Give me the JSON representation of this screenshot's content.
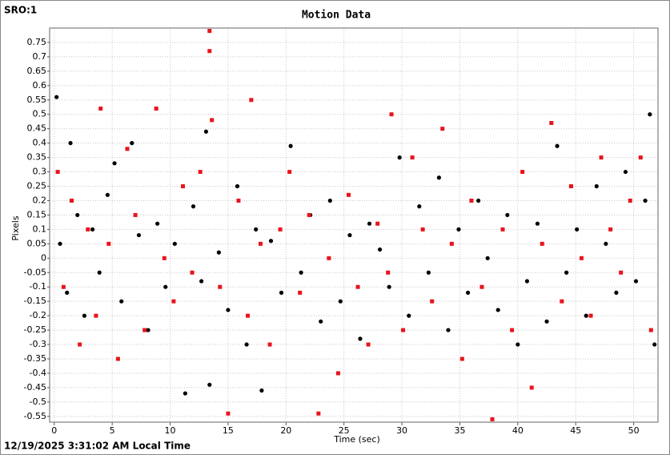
{
  "chart_data": {
    "type": "scatter",
    "title": "Motion Data",
    "annotations": [
      "SRO:1",
      "12/19/2025 3:31:02 AM Local Time"
    ],
    "x_label": "Time (sec)",
    "y_label": "Pixels",
    "xlim": [
      -0.4,
      52.1
    ],
    "ylim": [
      -0.57,
      0.8
    ],
    "xticks": [
      0,
      5,
      10,
      15,
      20,
      25,
      30,
      35,
      40,
      45,
      50
    ],
    "yticks": [
      -0.55,
      -0.5,
      -0.45,
      -0.4,
      -0.35,
      -0.3,
      -0.25,
      -0.2,
      -0.15,
      -0.1,
      -0.05,
      0,
      0.05,
      0.1,
      0.15,
      0.2,
      0.25,
      0.3,
      0.35,
      0.4,
      0.45,
      0.5,
      0.55,
      0.6,
      0.65,
      0.7,
      0.75
    ],
    "grid": true,
    "series": [
      {
        "color": "#000000",
        "marker": "circle",
        "x": [
          0.2,
          0.5,
          1.1,
          1.4,
          2.0,
          2.6,
          3.3,
          3.9,
          4.6,
          5.2,
          5.8,
          6.7,
          7.3,
          8.1,
          8.9,
          9.6,
          10.4,
          11.3,
          12.0,
          12.7,
          13.1,
          13.4,
          14.2,
          15.0,
          15.8,
          16.6,
          17.4,
          17.9,
          18.7,
          19.6,
          20.4,
          21.3,
          22.1,
          23.0,
          23.8,
          24.7,
          25.5,
          26.4,
          27.2,
          28.1,
          28.9,
          29.8,
          30.6,
          31.5,
          32.3,
          33.2,
          34.0,
          34.9,
          35.7,
          36.6,
          37.4,
          38.3,
          39.1,
          40.0,
          40.8,
          41.7,
          42.5,
          43.4,
          44.2,
          45.1,
          45.9,
          46.8,
          47.6,
          48.5,
          49.3,
          50.2,
          51.0,
          51.4,
          51.8
        ],
        "values": [
          0.56,
          0.05,
          -0.12,
          0.4,
          0.15,
          -0.2,
          0.1,
          -0.05,
          0.22,
          0.33,
          -0.15,
          0.4,
          0.08,
          -0.25,
          0.12,
          -0.1,
          0.05,
          -0.47,
          0.18,
          -0.08,
          0.44,
          -0.44,
          0.02,
          -0.18,
          0.25,
          -0.3,
          0.1,
          -0.46,
          0.06,
          -0.12,
          0.39,
          -0.05,
          0.15,
          -0.22,
          0.2,
          -0.15,
          0.08,
          -0.28,
          0.12,
          0.03,
          -0.1,
          0.35,
          -0.2,
          0.18,
          -0.05,
          0.28,
          -0.25,
          0.1,
          -0.12,
          0.2,
          0.0,
          -0.18,
          0.15,
          -0.3,
          -0.08,
          0.12,
          -0.22,
          0.39,
          -0.05,
          0.1,
          -0.2,
          0.25,
          0.05,
          -0.12,
          0.3,
          -0.08,
          0.2,
          0.5,
          -0.3
        ]
      },
      {
        "color": "#e8141c",
        "marker": "square",
        "x": [
          0.3,
          0.8,
          1.5,
          2.2,
          2.9,
          3.6,
          4.0,
          4.7,
          5.5,
          6.3,
          7.0,
          7.8,
          8.8,
          9.5,
          10.3,
          11.1,
          11.9,
          12.6,
          13.4,
          13.4,
          13.6,
          14.3,
          15.0,
          15.9,
          16.7,
          17.0,
          17.8,
          18.6,
          19.5,
          20.3,
          21.2,
          22.0,
          22.8,
          23.7,
          24.5,
          25.4,
          26.2,
          27.1,
          27.9,
          28.8,
          29.1,
          30.1,
          30.9,
          31.8,
          32.6,
          33.5,
          34.3,
          35.2,
          36.0,
          36.9,
          37.8,
          38.7,
          39.5,
          40.4,
          41.2,
          42.1,
          42.9,
          43.8,
          44.6,
          45.5,
          46.3,
          47.2,
          48.0,
          48.9,
          49.7,
          50.6,
          51.5
        ],
        "values": [
          0.3,
          -0.1,
          0.2,
          -0.3,
          0.1,
          -0.2,
          0.52,
          0.05,
          -0.35,
          0.38,
          0.15,
          -0.25,
          0.52,
          0.0,
          -0.15,
          0.25,
          -0.05,
          0.3,
          0.79,
          0.72,
          0.48,
          -0.1,
          -0.54,
          0.2,
          -0.2,
          0.55,
          0.05,
          -0.3,
          0.1,
          0.3,
          -0.12,
          0.15,
          -0.54,
          0.0,
          -0.4,
          0.22,
          -0.1,
          -0.3,
          0.12,
          -0.05,
          0.5,
          -0.25,
          0.35,
          0.1,
          -0.15,
          0.45,
          0.05,
          -0.35,
          0.2,
          -0.1,
          -0.56,
          0.1,
          -0.25,
          0.3,
          -0.45,
          0.05,
          0.47,
          -0.15,
          0.25,
          0.0,
          -0.2,
          0.35,
          0.1,
          -0.05,
          0.2,
          0.35,
          -0.25
        ]
      }
    ]
  }
}
